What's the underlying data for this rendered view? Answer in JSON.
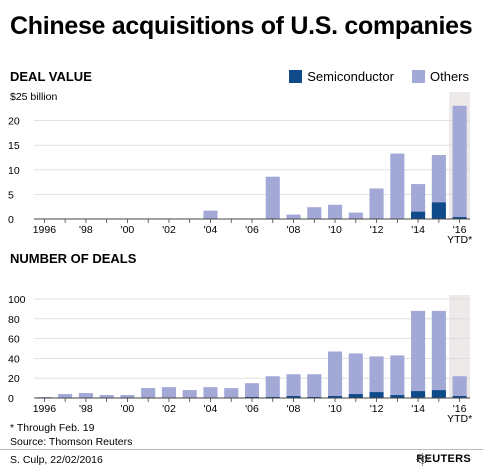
{
  "title": "Chinese acquisitions of U.S. companies",
  "legend": [
    {
      "label": "Semiconductor",
      "color": "#0f4a8a"
    },
    {
      "label": "Others",
      "color": "#a3a9d6"
    }
  ],
  "colors": {
    "semiconductor": "#0f4a8a",
    "others": "#a3a9d6",
    "ytd_shade": "#ede9e9",
    "axis": "#888888",
    "grid": "#d9d9d9"
  },
  "footnote": [
    "* Through Feb. 19",
    "Source: Thomson Reuters"
  ],
  "credit": "S. Culp, 22/02/2016",
  "brand": "REUTERS",
  "brand_icon": "reuters-logo-icon",
  "chart_data": [
    {
      "type": "bar",
      "stacked": true,
      "title": "DEAL VALUE",
      "unit_label": "$25 billion",
      "ylim": [
        0,
        25
      ],
      "yticks": [
        0,
        5,
        10,
        15,
        20
      ],
      "grid": true,
      "categories": [
        "1996",
        "1997",
        "1998",
        "1999",
        "2000",
        "2001",
        "2002",
        "2003",
        "2004",
        "2005",
        "2006",
        "2007",
        "2008",
        "2009",
        "2010",
        "2011",
        "2012",
        "2013",
        "2014",
        "2015",
        "2016"
      ],
      "xtick_labels": [
        "1996",
        "",
        "'98",
        "",
        "'00",
        "",
        "'02",
        "",
        "'04",
        "",
        "'06",
        "",
        "'08",
        "",
        "'10",
        "",
        "'12",
        "",
        "'14",
        "",
        "'16"
      ],
      "ytd_label": "YTD*",
      "series": [
        {
          "name": "Semiconductor",
          "values": [
            0,
            0,
            0,
            0,
            0,
            0,
            0,
            0,
            0,
            0,
            0,
            0,
            0,
            0,
            0,
            0,
            0.1,
            0,
            1.5,
            3.4,
            0.4
          ]
        },
        {
          "name": "Others",
          "values": [
            0.1,
            0.1,
            0.1,
            0.1,
            0.1,
            0.1,
            0.1,
            0.1,
            1.7,
            0.1,
            0.1,
            8.6,
            0.9,
            2.4,
            2.9,
            1.3,
            6.1,
            13.3,
            5.6,
            9.6,
            22.6
          ]
        }
      ]
    },
    {
      "type": "bar",
      "stacked": true,
      "title": "NUMBER OF DEALS",
      "ylim": [
        0,
        100
      ],
      "yticks": [
        0,
        20,
        40,
        60,
        80,
        100
      ],
      "grid": true,
      "categories": [
        "1996",
        "1997",
        "1998",
        "1999",
        "2000",
        "2001",
        "2002",
        "2003",
        "2004",
        "2005",
        "2006",
        "2007",
        "2008",
        "2009",
        "2010",
        "2011",
        "2012",
        "2013",
        "2014",
        "2015",
        "2016"
      ],
      "xtick_labels": [
        "1996",
        "",
        "'98",
        "",
        "'00",
        "",
        "'02",
        "",
        "'04",
        "",
        "'06",
        "",
        "'08",
        "",
        "'10",
        "",
        "'12",
        "",
        "'14",
        "",
        "'16"
      ],
      "ytd_label": "YTD*",
      "series": [
        {
          "name": "Semiconductor",
          "values": [
            0,
            0,
            0,
            0,
            0,
            0,
            0,
            0,
            0,
            0,
            1,
            1,
            2,
            1,
            2,
            4,
            6,
            3,
            7,
            8,
            2
          ]
        },
        {
          "name": "Others",
          "values": [
            1,
            4,
            5,
            3,
            3,
            10,
            11,
            8,
            11,
            10,
            14,
            21,
            22,
            23,
            45,
            41,
            36,
            40,
            81,
            80,
            20
          ]
        }
      ]
    }
  ]
}
